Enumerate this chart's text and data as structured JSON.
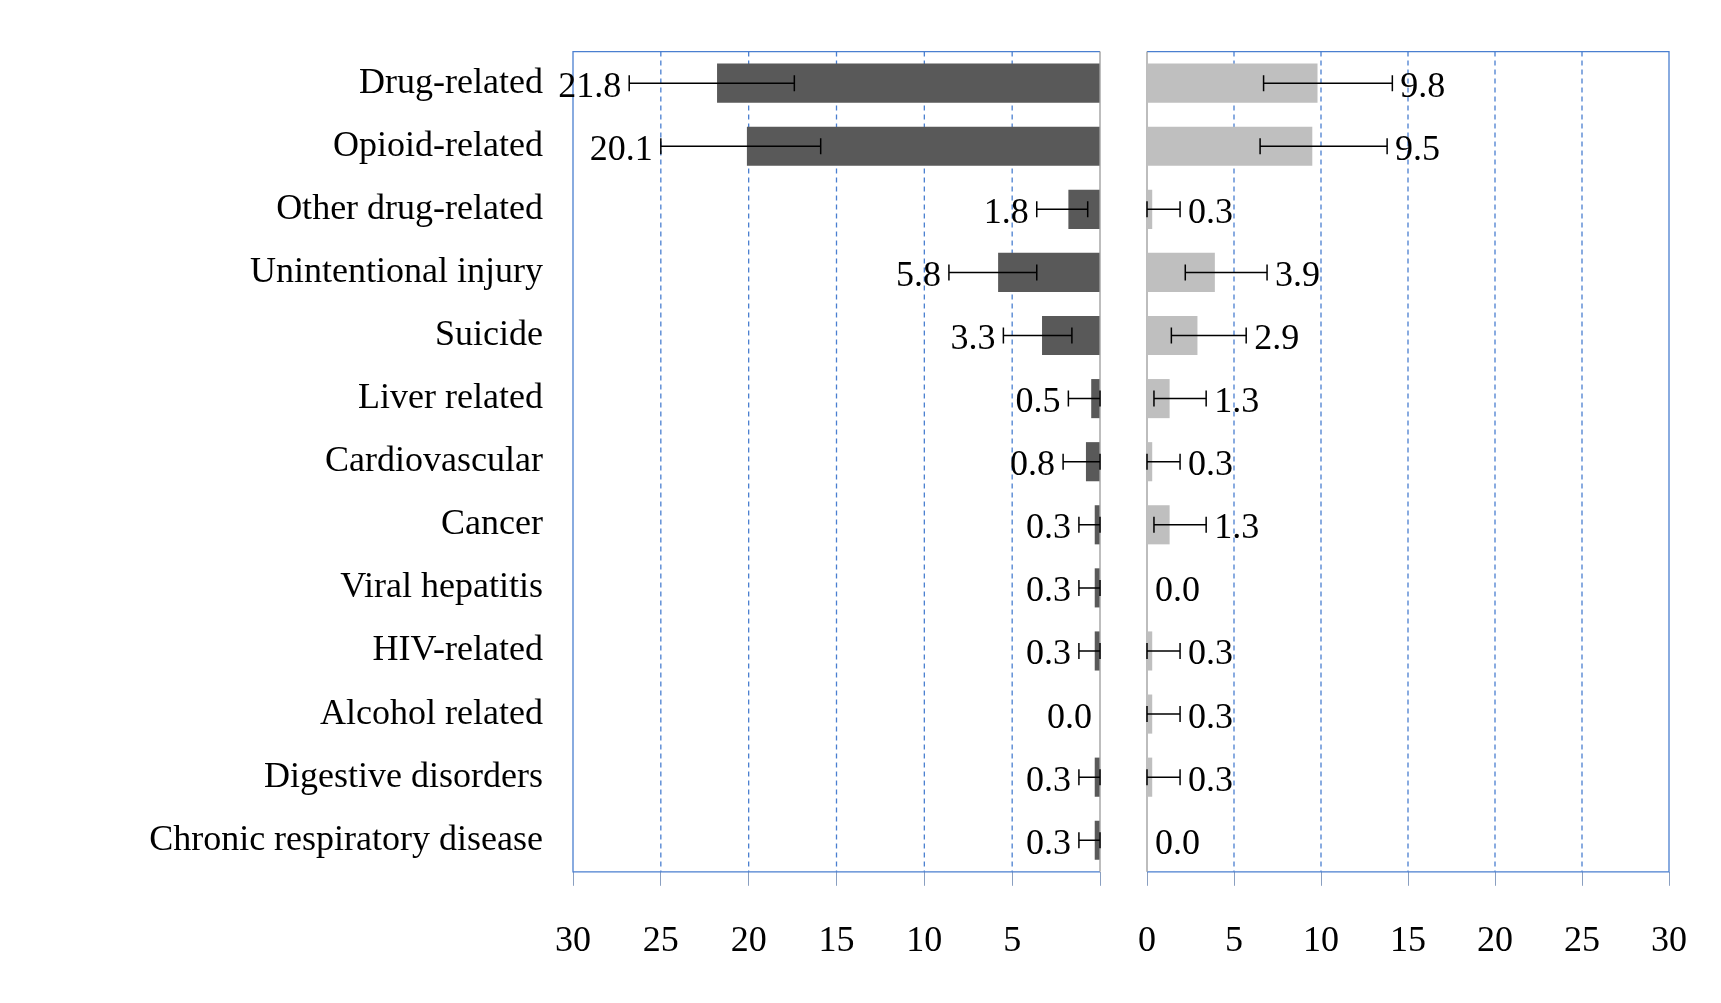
{
  "chart_data": [
    {
      "type": "bar",
      "orientation": "horizontal",
      "grid": "x",
      "legend": false,
      "categories": [
        "Drug-related",
        "Opioid-related",
        "Other drug-related",
        "Unintentional injury",
        "Suicide",
        "Liver related",
        "Cardiovascular",
        "Cancer",
        "Viral hepatitis",
        "HIV-related",
        "Alcohol related",
        "Digestive disorders",
        "Chronic respiratory disease"
      ],
      "xlim": [
        30,
        0
      ],
      "xticks": [
        30,
        25,
        20,
        15,
        10,
        5,
        {
          "value": 0,
          "label": null
        }
      ],
      "series": [
        {
          "color": "#595959",
          "values": [
            21.8,
            20.1,
            1.8,
            5.8,
            3.3,
            0.5,
            0.8,
            0.3,
            0.3,
            0.3,
            0.0,
            0.3,
            0.3
          ],
          "value_labels": [
            "21.8",
            "20.1",
            "1.8",
            "5.8",
            "3.3",
            "0.5",
            "0.8",
            "0.3",
            "0.3",
            "0.3",
            "0.0",
            "0.3",
            "0.3"
          ],
          "errors": [
            [
              17.4,
              26.8
            ],
            [
              15.9,
              25.0
            ],
            [
              0.7,
              3.6
            ],
            [
              3.6,
              8.6
            ],
            [
              1.6,
              5.5
            ],
            [
              0,
              1.8
            ],
            [
              0,
              2.1
            ],
            [
              0,
              1.2
            ],
            [
              0,
              1.2
            ],
            [
              0,
              1.2
            ],
            null,
            [
              0,
              1.2
            ],
            [
              0,
              1.2
            ]
          ]
        }
      ]
    },
    {
      "type": "bar",
      "orientation": "horizontal",
      "grid": "x",
      "legend": false,
      "tick_labels": "x",
      "categories": [
        null,
        null,
        null,
        null,
        null,
        null,
        null,
        null,
        null,
        null,
        null,
        null,
        null
      ],
      "xlim": [
        0,
        30
      ],
      "xticks": [
        0,
        5,
        10,
        15,
        20,
        25,
        30
      ],
      "series": [
        {
          "color": "#bfbfbf",
          "values": [
            9.8,
            9.5,
            0.3,
            3.9,
            2.9,
            1.3,
            0.3,
            1.3,
            0.0,
            0.3,
            0.3,
            0.3,
            0.0
          ],
          "value_labels": [
            "9.8",
            "9.5",
            "0.3",
            "3.9",
            "2.9",
            "1.3",
            "0.3",
            "1.3",
            "0.0",
            "0.3",
            "0.3",
            "0.3",
            "0.0"
          ],
          "errors": [
            [
              6.7,
              14.1
            ],
            [
              6.5,
              13.8
            ],
            [
              0,
              1.9
            ],
            [
              2.2,
              6.9
            ],
            [
              1.4,
              5.7
            ],
            [
              0.4,
              3.4
            ],
            [
              0,
              1.9
            ],
            [
              0.4,
              3.4
            ],
            null,
            [
              0,
              1.9
            ],
            [
              0,
              1.9
            ],
            [
              0,
              1.9
            ],
            null
          ]
        }
      ]
    }
  ]
}
